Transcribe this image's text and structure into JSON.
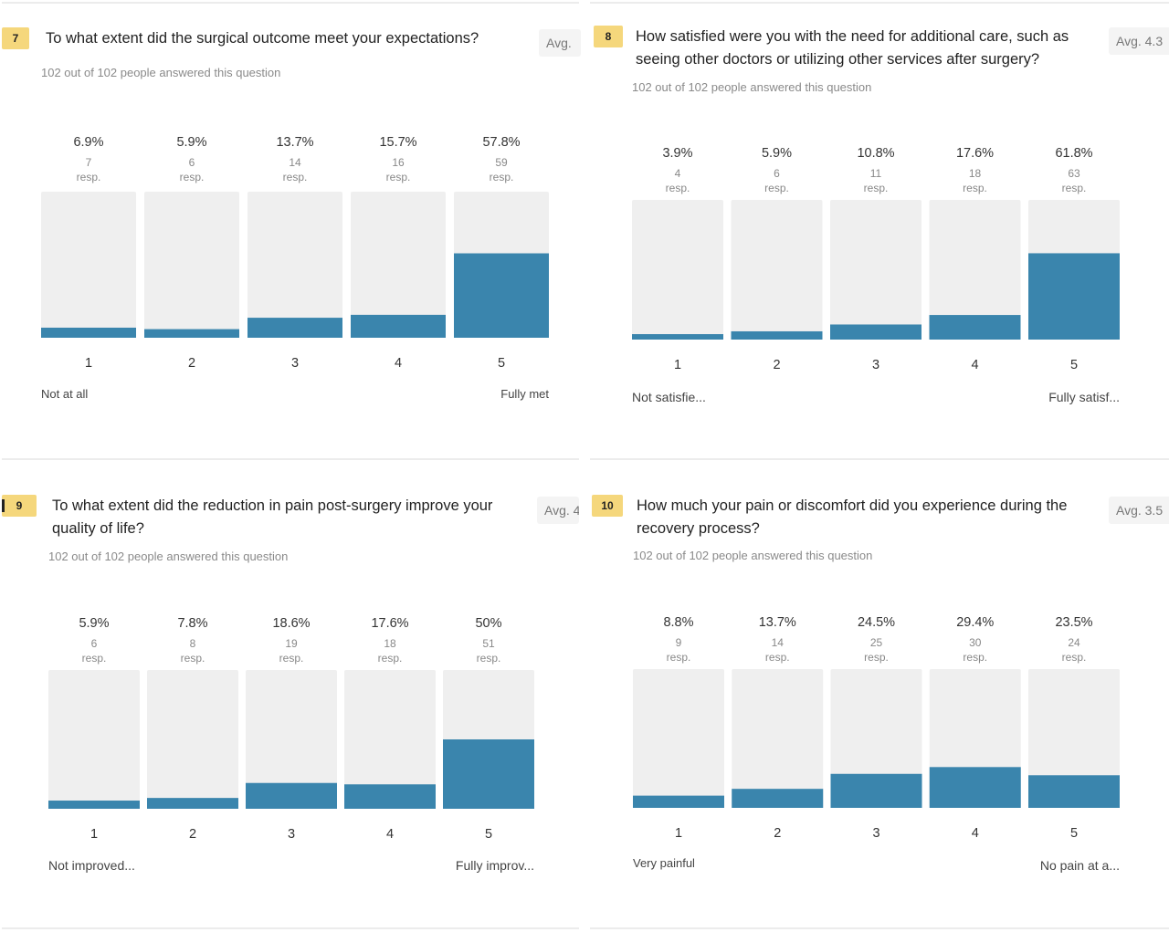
{
  "colors": {
    "bar_fill": "#3a85ad",
    "track": "#efefef",
    "badge": "#f5d77c"
  },
  "panels": [
    {
      "number": "7",
      "question": "To what extent did the surgical outcome meet your expectations?",
      "avg": "Avg.",
      "answered": "102 out of 102 people answered this question",
      "low_label": "Not at all",
      "high_label": "Fully met"
    },
    {
      "number": "8",
      "question": "How satisfied were you with the need for additional care, such as seeing other doctors or utilizing other services after surgery?",
      "avg": "Avg. 4.3",
      "answered": "102 out of 102 people answered this question",
      "low_label": "Not satisfie...",
      "high_label": "Fully satisf..."
    },
    {
      "number": "9",
      "question": "To what extent did the reduction in pain post-surgery improve your quality of life?",
      "avg": "Avg. 4",
      "answered": "102 out of 102 people answered this question",
      "low_label": "Not improved...",
      "high_label": "Fully improv..."
    },
    {
      "number": "10",
      "question": "How much your pain or discomfort did you experience during the recovery process?",
      "avg": "Avg. 3.5",
      "answered": "102 out of 102 people answered this question",
      "low_label": "Very painful",
      "high_label": "No pain at a..."
    }
  ],
  "chart_data": [
    {
      "type": "bar",
      "categories": [
        "1",
        "2",
        "3",
        "4",
        "5"
      ],
      "percent_labels": [
        "6.9%",
        "5.9%",
        "13.7%",
        "15.7%",
        "57.8%"
      ],
      "values": [
        6.9,
        5.9,
        13.7,
        15.7,
        57.8
      ],
      "responses": [
        7,
        6,
        14,
        16,
        59
      ],
      "resp_unit": "resp.",
      "ylim": [
        0,
        100
      ]
    },
    {
      "type": "bar",
      "categories": [
        "1",
        "2",
        "3",
        "4",
        "5"
      ],
      "percent_labels": [
        "3.9%",
        "5.9%",
        "10.8%",
        "17.6%",
        "61.8%"
      ],
      "values": [
        3.9,
        5.9,
        10.8,
        17.6,
        61.8
      ],
      "responses": [
        4,
        6,
        11,
        18,
        63
      ],
      "resp_unit": "resp.",
      "ylim": [
        0,
        100
      ]
    },
    {
      "type": "bar",
      "categories": [
        "1",
        "2",
        "3",
        "4",
        "5"
      ],
      "percent_labels": [
        "5.9%",
        "7.8%",
        "18.6%",
        "17.6%",
        "50%"
      ],
      "values": [
        5.9,
        7.8,
        18.6,
        17.6,
        50
      ],
      "responses": [
        6,
        8,
        19,
        18,
        51
      ],
      "resp_unit": "resp.",
      "ylim": [
        0,
        100
      ]
    },
    {
      "type": "bar",
      "categories": [
        "1",
        "2",
        "3",
        "4",
        "5"
      ],
      "percent_labels": [
        "8.8%",
        "13.7%",
        "24.5%",
        "29.4%",
        "23.5%"
      ],
      "values": [
        8.8,
        13.7,
        24.5,
        29.4,
        23.5
      ],
      "responses": [
        9,
        14,
        25,
        30,
        24
      ],
      "resp_unit": "resp.",
      "ylim": [
        0,
        100
      ]
    }
  ]
}
